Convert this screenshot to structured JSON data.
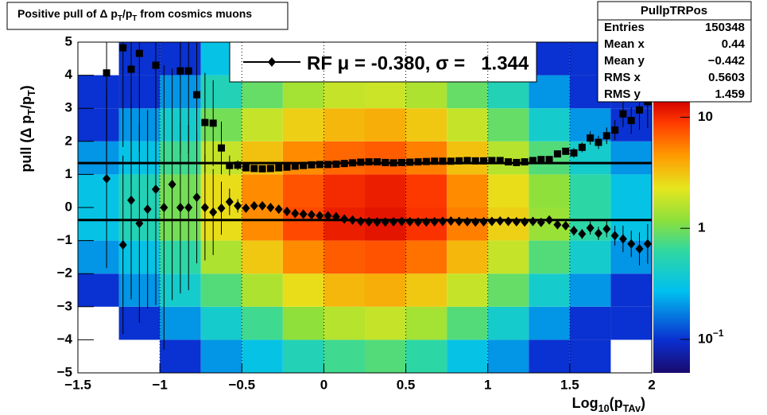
{
  "chart_data": {
    "type": "heatmap",
    "title": [
      {
        "text": "Positive pull of Δ p"
      },
      {
        "text": "T",
        "sub": true
      },
      {
        "text": "/p"
      },
      {
        "text": "T",
        "sub": true
      },
      {
        "text": " from cosmics muons"
      }
    ],
    "x_label": [
      {
        "text": "Log"
      },
      {
        "text": "10",
        "sub": true
      },
      {
        "text": "(p"
      },
      {
        "text": "TAv",
        "sub": true
      },
      {
        "text": ")"
      }
    ],
    "y_label": [
      {
        "text": "pull (Δ p"
      },
      {
        "text": "T",
        "sub": true
      },
      {
        "text": "/p"
      },
      {
        "text": "T",
        "sub": true
      },
      {
        "text": ")"
      }
    ],
    "xlim": [
      -1.5,
      2
    ],
    "xticks": [
      {
        "value": -1.5,
        "label": "−1.5"
      },
      {
        "value": -1,
        "label": "−1"
      },
      {
        "value": -0.5,
        "label": "−0.5"
      },
      0,
      0.5,
      1,
      1.5,
      2
    ],
    "ylim": [
      -5,
      5
    ],
    "yticks": [
      {
        "value": -5,
        "label": "−5"
      },
      {
        "value": -4,
        "label": "−4"
      },
      {
        "value": -3,
        "label": "−3"
      },
      {
        "value": -2,
        "label": "−2"
      },
      {
        "value": -1,
        "label": "−1"
      },
      0,
      1,
      2,
      3,
      4,
      5
    ],
    "grid": "x",
    "zlim": [
      0.05,
      14
    ],
    "zlog": true,
    "zticks": [
      {
        "value": 0.1,
        "label": "10",
        "exponent": "−1"
      },
      1,
      10
    ],
    "xbins": [
      -1.5,
      -1.25,
      -1,
      -0.75,
      -0.5,
      -0.25,
      0,
      0.25,
      0.5,
      0.75,
      1,
      1.25,
      1.5,
      1.75,
      2
    ],
    "ybins": [
      -5,
      -4,
      -3,
      -2,
      -1,
      0,
      1,
      2,
      3,
      4,
      5
    ],
    "z": [
      [
        0,
        0,
        0.1,
        0.2,
        0.3,
        0.5,
        0.7,
        0.8,
        0.6,
        0.3,
        0.2,
        0.1,
        0.1,
        0
      ],
      [
        0,
        0.1,
        0.2,
        0.4,
        0.7,
        1.2,
        1.6,
        1.8,
        1.4,
        0.8,
        0.4,
        0.2,
        0.1,
        0.1
      ],
      [
        0.1,
        0.2,
        0.4,
        0.8,
        1.5,
        2.5,
        3.5,
        3.8,
        3,
        1.8,
        0.9,
        0.4,
        0.2,
        0.1
      ],
      [
        0.2,
        0.3,
        0.6,
        1.5,
        3,
        5,
        7,
        7.5,
        6,
        3.5,
        1.8,
        0.8,
        0.4,
        0.2
      ],
      [
        0.3,
        0.5,
        1,
        2.5,
        5,
        8,
        11,
        12,
        9.5,
        5.5,
        2.8,
        1.3,
        0.6,
        0.3
      ],
      [
        0.3,
        0.5,
        1,
        2.5,
        5,
        7.5,
        10,
        11,
        9,
        5,
        2.5,
        1.2,
        0.6,
        0.3
      ],
      [
        0.2,
        0.3,
        0.7,
        1.8,
        3.2,
        5,
        6.5,
        7,
        5.5,
        3.2,
        1.6,
        0.8,
        0.4,
        0.2
      ],
      [
        0.1,
        0.2,
        0.4,
        1,
        1.8,
        2.8,
        3.5,
        3.8,
        3,
        1.8,
        0.9,
        0.4,
        0.2,
        0.1
      ],
      [
        0.1,
        0.1,
        0.2,
        0.5,
        0.9,
        1.4,
        1.8,
        1.9,
        1.5,
        0.9,
        0.5,
        0.2,
        0.1,
        0.1
      ],
      [
        0,
        0.1,
        0.1,
        0.3,
        0.5,
        0.7,
        0.9,
        1,
        0.8,
        0.5,
        0.3,
        0.1,
        0.1,
        0
      ]
    ],
    "x": [
      -1.325,
      -1.275,
      -1.225,
      -1.175,
      -1.125,
      -1.075,
      -1.025,
      -0.975,
      -0.925,
      -0.875,
      -0.825,
      -0.775,
      -0.725,
      -0.675,
      -0.625,
      -0.575,
      -0.525,
      -0.475,
      -0.425,
      -0.375,
      -0.325,
      -0.275,
      -0.225,
      -0.175,
      -0.125,
      -0.075,
      -0.025,
      0.025,
      0.075,
      0.125,
      0.175,
      0.225,
      0.275,
      0.325,
      0.375,
      0.425,
      0.475,
      0.525,
      0.575,
      0.625,
      0.675,
      0.725,
      0.775,
      0.825,
      0.875,
      0.925,
      0.975,
      1.025,
      1.075,
      1.125,
      1.175,
      1.225,
      1.275,
      1.325,
      1.375,
      1.425,
      1.475,
      1.525,
      1.575,
      1.625,
      1.675,
      1.725,
      1.775,
      1.825,
      1.875,
      1.925,
      1.975
    ],
    "series": [
      {
        "marker": "square",
        "color": "#000000",
        "values": [
          4.07,
          null,
          4.83,
          4.18,
          4.66,
          null,
          4.3,
          null,
          null,
          4.13,
          4.13,
          3.41,
          2.57,
          2.55,
          1.8,
          1.27,
          1.28,
          1.2,
          1.18,
          1.17,
          1.18,
          1.2,
          1.22,
          1.25,
          1.27,
          1.29,
          1.3,
          1.3,
          1.31,
          1.33,
          1.35,
          1.37,
          1.38,
          1.38,
          1.36,
          1.35,
          1.36,
          1.37,
          1.38,
          1.39,
          1.4,
          1.4,
          1.4,
          1.41,
          1.42,
          1.41,
          1.41,
          1.42,
          1.42,
          1.38,
          1.36,
          1.38,
          1.42,
          1.45,
          1.45,
          1.62,
          1.7,
          1.65,
          1.82,
          2.1,
          1.97,
          2.17,
          2.34,
          2.83,
          2.63,
          2.95,
          3.2
        ],
        "errors": [
          3,
          null,
          3,
          3.5,
          3,
          null,
          3.5,
          null,
          null,
          2.5,
          2.5,
          2,
          1.5,
          1.3,
          0.8,
          0.3,
          0.15,
          0.05,
          0.05,
          0.05,
          0.05,
          0.05,
          0.05,
          0.05,
          0.05,
          0.05,
          0.05,
          0.05,
          0.05,
          0.05,
          0.05,
          0.05,
          0.05,
          0.05,
          0.05,
          0.05,
          0.05,
          0.05,
          0.05,
          0.05,
          0.05,
          0.05,
          0.05,
          0.05,
          0.05,
          0.05,
          0.05,
          0.05,
          0.05,
          0.05,
          0.05,
          0.05,
          0.05,
          0.05,
          0.05,
          0.1,
          0.1,
          0.15,
          0.15,
          0.2,
          0.2,
          0.25,
          0.3,
          0.4,
          0.4,
          0.6,
          0.8
        ]
      },
      {
        "marker": "diamond",
        "color": "#000000",
        "values": [
          0.87,
          null,
          -1.13,
          0.22,
          -0.48,
          -0.05,
          0.55,
          0,
          0.7,
          0,
          0,
          0.31,
          0,
          -0.14,
          -0.02,
          0.17,
          0.05,
          -0.02,
          0.05,
          0.05,
          0,
          -0.05,
          -0.12,
          -0.18,
          -0.2,
          -0.22,
          -0.25,
          -0.25,
          -0.28,
          -0.35,
          -0.38,
          -0.42,
          -0.43,
          -0.44,
          -0.44,
          -0.43,
          -0.42,
          -0.43,
          -0.44,
          -0.44,
          -0.43,
          -0.42,
          -0.41,
          -0.42,
          -0.43,
          -0.44,
          -0.43,
          -0.42,
          -0.41,
          -0.42,
          -0.43,
          -0.44,
          -0.42,
          -0.45,
          -0.38,
          -0.52,
          -0.55,
          -0.7,
          -0.8,
          -0.62,
          -0.78,
          -0.65,
          -0.85,
          -0.95,
          -1.1,
          -1.25,
          -1.1
        ],
        "errors": [
          2.7,
          null,
          2.7,
          3,
          3,
          3,
          3.5,
          4.3,
          3.5,
          2.6,
          2.5,
          2,
          1.6,
          1.3,
          0.8,
          0.4,
          0.2,
          0.05,
          0.05,
          0.05,
          0.05,
          0.05,
          0.05,
          0.05,
          0.05,
          0.05,
          0.05,
          0.05,
          0.05,
          0.05,
          0.05,
          0.05,
          0.05,
          0.05,
          0.05,
          0.05,
          0.05,
          0.05,
          0.05,
          0.05,
          0.05,
          0.05,
          0.05,
          0.05,
          0.05,
          0.05,
          0.05,
          0.05,
          0.05,
          0.05,
          0.05,
          0.05,
          0.05,
          0.05,
          0.05,
          0.1,
          0.1,
          0.15,
          0.15,
          0.2,
          0.2,
          0.25,
          0.3,
          0.4,
          0.4,
          0.5,
          0.6
        ]
      }
    ],
    "fit": {
      "mu": -0.38,
      "sigma": 1.344
    },
    "legend": {
      "label": "RF μ = -0.380, σ =   1.344",
      "position": "top"
    },
    "stats": {
      "title": "PullpTRPos",
      "rows": [
        [
          "Entries",
          "150348"
        ],
        [
          "Mean x",
          "0.44"
        ],
        [
          "Mean y",
          "−0.442"
        ],
        [
          "RMS x",
          "0.5603"
        ],
        [
          "RMS y",
          "1.459"
        ]
      ]
    }
  }
}
